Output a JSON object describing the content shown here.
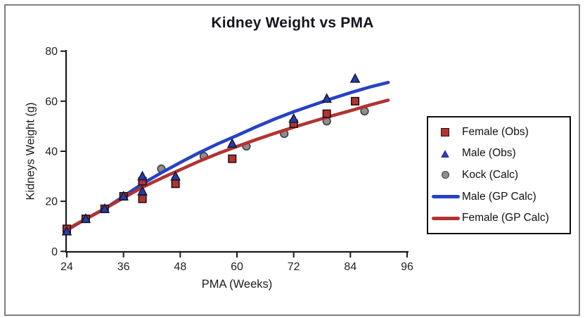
{
  "chart": {
    "title": "Kidney Weight vs PMA",
    "x_label": "PMA (Weeks)",
    "y_label": "Kidneys Weight (g)"
  },
  "legend": {
    "items": [
      {
        "label": "Female (Obs)",
        "marker": "square",
        "color": "#b23331"
      },
      {
        "label": "Male (Obs)",
        "marker": "triangle",
        "color": "#2b3ca8"
      },
      {
        "label": "Kock (Calc)",
        "marker": "circle",
        "color": "#8e8e8e"
      },
      {
        "label": "Male (GP Calc)",
        "marker": "line",
        "color": "#2742c4"
      },
      {
        "label": "Female (GP Calc)",
        "marker": "line",
        "color": "#b23331"
      }
    ]
  },
  "chart_data": {
    "type": "scatter",
    "title": "Kidney Weight vs PMA",
    "xlabel": "PMA (Weeks)",
    "ylabel": "Kidneys Weight (g)",
    "xlim": [
      24,
      96
    ],
    "ylim": [
      0,
      80
    ],
    "x_ticks": [
      24,
      36,
      48,
      60,
      72,
      84,
      96
    ],
    "y_ticks": [
      0,
      20,
      40,
      60,
      80
    ],
    "grid": false,
    "legend_position": "right",
    "series": [
      {
        "name": "Female (Obs)",
        "kind": "scatter",
        "marker": "square",
        "color": "#b23331",
        "edge": "#241111",
        "points": [
          [
            24,
            9
          ],
          [
            28,
            13
          ],
          [
            32,
            17
          ],
          [
            36,
            22
          ],
          [
            40,
            21
          ],
          [
            40,
            28
          ],
          [
            47,
            27
          ],
          [
            59,
            37
          ],
          [
            72,
            51
          ],
          [
            79,
            55
          ],
          [
            85,
            60
          ]
        ]
      },
      {
        "name": "Male (Obs)",
        "kind": "scatter",
        "marker": "triangle",
        "color": "#2b3ca8",
        "edge": "#131b38",
        "points": [
          [
            24,
            8
          ],
          [
            28,
            13
          ],
          [
            32,
            17
          ],
          [
            36,
            22
          ],
          [
            40,
            24
          ],
          [
            40,
            30
          ],
          [
            47,
            30
          ],
          [
            59,
            43
          ],
          [
            72,
            53
          ],
          [
            79,
            61
          ],
          [
            85,
            69
          ]
        ]
      },
      {
        "name": "Kock (Calc)",
        "kind": "scatter",
        "marker": "circle",
        "color": "#8e8e8e",
        "edge": "#3d3d3d",
        "points": [
          [
            44,
            33
          ],
          [
            53,
            38
          ],
          [
            62,
            42
          ],
          [
            70,
            47
          ],
          [
            79,
            52
          ],
          [
            87,
            56
          ]
        ]
      },
      {
        "name": "Male (GP Calc)",
        "kind": "line",
        "color": "#2742c4",
        "points": [
          [
            24,
            8.5
          ],
          [
            28,
            12.9
          ],
          [
            32,
            17
          ],
          [
            36,
            22
          ],
          [
            40,
            27
          ],
          [
            44,
            31.4
          ],
          [
            48,
            35.5
          ],
          [
            52,
            39.4
          ],
          [
            56,
            43
          ],
          [
            60,
            46.3
          ],
          [
            64,
            49.7
          ],
          [
            68,
            52.9
          ],
          [
            72,
            55.8
          ],
          [
            76,
            58.4
          ],
          [
            80,
            61
          ],
          [
            84,
            63.4
          ],
          [
            88,
            65.6
          ],
          [
            92,
            67.5
          ]
        ]
      },
      {
        "name": "Female (GP Calc)",
        "kind": "line",
        "color": "#b23331",
        "points": [
          [
            24,
            8.7
          ],
          [
            28,
            13
          ],
          [
            32,
            17
          ],
          [
            36,
            21.4
          ],
          [
            40,
            25.6
          ],
          [
            44,
            29.2
          ],
          [
            48,
            32.6
          ],
          [
            52,
            36
          ],
          [
            56,
            39.1
          ],
          [
            60,
            41.9
          ],
          [
            64,
            44.6
          ],
          [
            68,
            47.2
          ],
          [
            72,
            49.6
          ],
          [
            76,
            51.9
          ],
          [
            80,
            54.1
          ],
          [
            84,
            56.2
          ],
          [
            88,
            58.4
          ],
          [
            92,
            60.4
          ]
        ]
      }
    ]
  }
}
